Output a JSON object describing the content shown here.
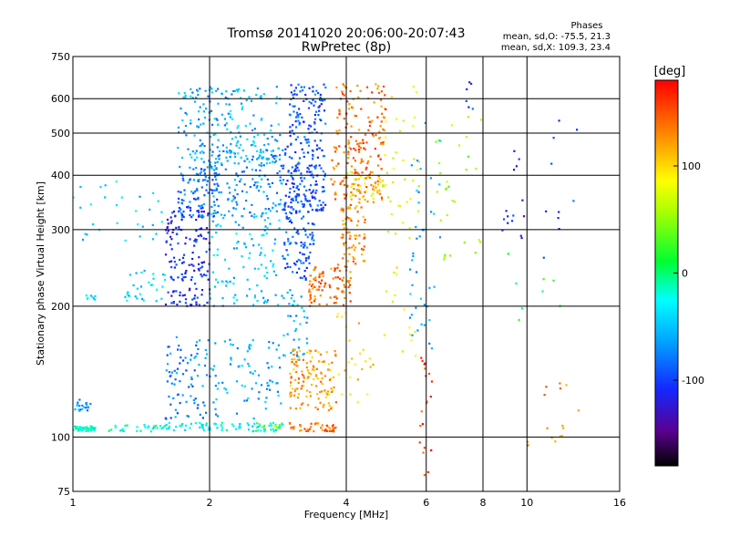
{
  "chart_data": {
    "type": "scatter",
    "title": "Tromsø 20141020 20:06:00-20:07:43",
    "subtitle": "RwPretec (8p)",
    "xlabel": "Frequency [MHz]",
    "ylabel": "Stationary phase Virtual Height [km]",
    "x_scale": "log",
    "y_scale": "log",
    "xlim": [
      1,
      16
    ],
    "ylim": [
      75,
      750
    ],
    "x_ticks": [
      1,
      2,
      4,
      6,
      8,
      10,
      16
    ],
    "x_tick_labels": [
      "1",
      "2",
      "4",
      "6",
      "8",
      "10",
      "16"
    ],
    "y_ticks": [
      75,
      100,
      200,
      300,
      400,
      500,
      600,
      750
    ],
    "y_tick_labels": [
      "75",
      "100",
      "200",
      "300",
      "400",
      "500",
      "600",
      "750"
    ],
    "x_gridlines": [
      2,
      4,
      6,
      8,
      10
    ],
    "y_gridlines": [
      100,
      200,
      300,
      400,
      500,
      600
    ],
    "grid": true,
    "stats": {
      "heading": "Phases",
      "o_line": "mean, sd,O: -75.5, 21.3",
      "x_line": "mean, sd,X: 109.3, 23.4"
    },
    "colorbar": {
      "label": "[deg]",
      "range": [
        -180,
        180
      ],
      "ticks": [
        100,
        0,
        -100
      ],
      "tick_labels": [
        "100",
        "0",
        "-100"
      ],
      "colormap": "rainbow"
    },
    "clusters": [
      {
        "x": [
          1.0,
          1.12
        ],
        "y": [
          103,
          106
        ],
        "phase": -20,
        "count": 50
      },
      {
        "x": [
          1.0,
          1.1
        ],
        "y": [
          115,
          122
        ],
        "phase": -70,
        "count": 20
      },
      {
        "x": [
          1.05,
          1.12
        ],
        "y": [
          207,
          212
        ],
        "phase": -40,
        "count": 8
      },
      {
        "x": [
          1.2,
          1.6
        ],
        "y": [
          103,
          107
        ],
        "phase": -20,
        "count": 30
      },
      {
        "x": [
          1.3,
          1.6
        ],
        "y": [
          205,
          245
        ],
        "phase": -40,
        "count": 30
      },
      {
        "x": [
          1.6,
          2.9
        ],
        "y": [
          103,
          108
        ],
        "phase": -30,
        "count": 80
      },
      {
        "x": [
          2.5,
          2.9
        ],
        "y": [
          103,
          108
        ],
        "phase": 40,
        "count": 10
      },
      {
        "x": [
          1.6,
          2.0
        ],
        "y": [
          110,
          170
        ],
        "phase": -75,
        "count": 80
      },
      {
        "x": [
          2.0,
          2.9
        ],
        "y": [
          110,
          170
        ],
        "phase": -60,
        "count": 80
      },
      {
        "x": [
          1.6,
          2.0
        ],
        "y": [
          200,
          340
        ],
        "phase": -110,
        "count": 160
      },
      {
        "x": [
          1.7,
          2.1
        ],
        "y": [
          320,
          420
        ],
        "phase": -80,
        "count": 100
      },
      {
        "x": [
          2.0,
          2.9
        ],
        "y": [
          200,
          330
        ],
        "phase": -50,
        "count": 110
      },
      {
        "x": [
          2.0,
          2.9
        ],
        "y": [
          320,
          460
        ],
        "phase": -70,
        "count": 140
      },
      {
        "x": [
          1.7,
          2.2
        ],
        "y": [
          420,
          640
        ],
        "phase": -60,
        "count": 110
      },
      {
        "x": [
          2.2,
          2.9
        ],
        "y": [
          420,
          640
        ],
        "phase": -55,
        "count": 90
      },
      {
        "x": [
          1.0,
          1.6
        ],
        "y": [
          280,
          400
        ],
        "phase": -45,
        "count": 30
      },
      {
        "x": [
          2.9,
          3.4
        ],
        "y": [
          230,
          330
        ],
        "phase": -90,
        "count": 90
      },
      {
        "x": [
          2.9,
          3.6
        ],
        "y": [
          330,
          470
        ],
        "phase": -95,
        "count": 160
      },
      {
        "x": [
          3.0,
          3.6
        ],
        "y": [
          470,
          650
        ],
        "phase": -90,
        "count": 100
      },
      {
        "x": [
          2.9,
          3.3
        ],
        "y": [
          150,
          220
        ],
        "phase": -60,
        "count": 40
      },
      {
        "x": [
          3.0,
          3.8
        ],
        "y": [
          103,
          108
        ],
        "phase": 140,
        "count": 45
      },
      {
        "x": [
          3.0,
          3.8
        ],
        "y": [
          115,
          160
        ],
        "phase": 120,
        "count": 130
      },
      {
        "x": [
          3.3,
          4.1
        ],
        "y": [
          200,
          250
        ],
        "phase": 140,
        "count": 90
      },
      {
        "x": [
          3.9,
          4.4
        ],
        "y": [
          250,
          340
        ],
        "phase": 130,
        "count": 70
      },
      {
        "x": [
          3.7,
          4.8
        ],
        "y": [
          340,
          470
        ],
        "phase": 140,
        "count": 110
      },
      {
        "x": [
          3.8,
          4.9
        ],
        "y": [
          470,
          650
        ],
        "phase": 140,
        "count": 90
      },
      {
        "x": [
          4.0,
          4.9
        ],
        "y": [
          350,
          410
        ],
        "phase": 90,
        "count": 40
      },
      {
        "x": [
          3.8,
          4.6
        ],
        "y": [
          120,
          200
        ],
        "phase": 100,
        "count": 25
      },
      {
        "x": [
          4.8,
          5.8
        ],
        "y": [
          150,
          650
        ],
        "phase": 80,
        "count": 50
      },
      {
        "x": [
          5.5,
          6.5
        ],
        "y": [
          160,
          600
        ],
        "phase": -60,
        "count": 40
      },
      {
        "x": [
          5.8,
          6.2
        ],
        "y": [
          80,
          160
        ],
        "phase": 160,
        "count": 20
      },
      {
        "x": [
          6.3,
          8.0
        ],
        "y": [
          250,
          550
        ],
        "phase": 50,
        "count": 30
      },
      {
        "x": [
          7.3,
          7.6
        ],
        "y": [
          560,
          660
        ],
        "phase": -100,
        "count": 6
      },
      {
        "x": [
          8.8,
          10.2
        ],
        "y": [
          270,
          460
        ],
        "phase": -110,
        "count": 15
      },
      {
        "x": [
          10.0,
          13.0
        ],
        "y": [
          95,
          140
        ],
        "phase": 130,
        "count": 15
      },
      {
        "x": [
          10.8,
          13.5
        ],
        "y": [
          250,
          620
        ],
        "phase": -100,
        "count": 10
      },
      {
        "x": [
          8.0,
          12.0
        ],
        "y": [
          150,
          300
        ],
        "phase": 10,
        "count": 8
      }
    ]
  }
}
